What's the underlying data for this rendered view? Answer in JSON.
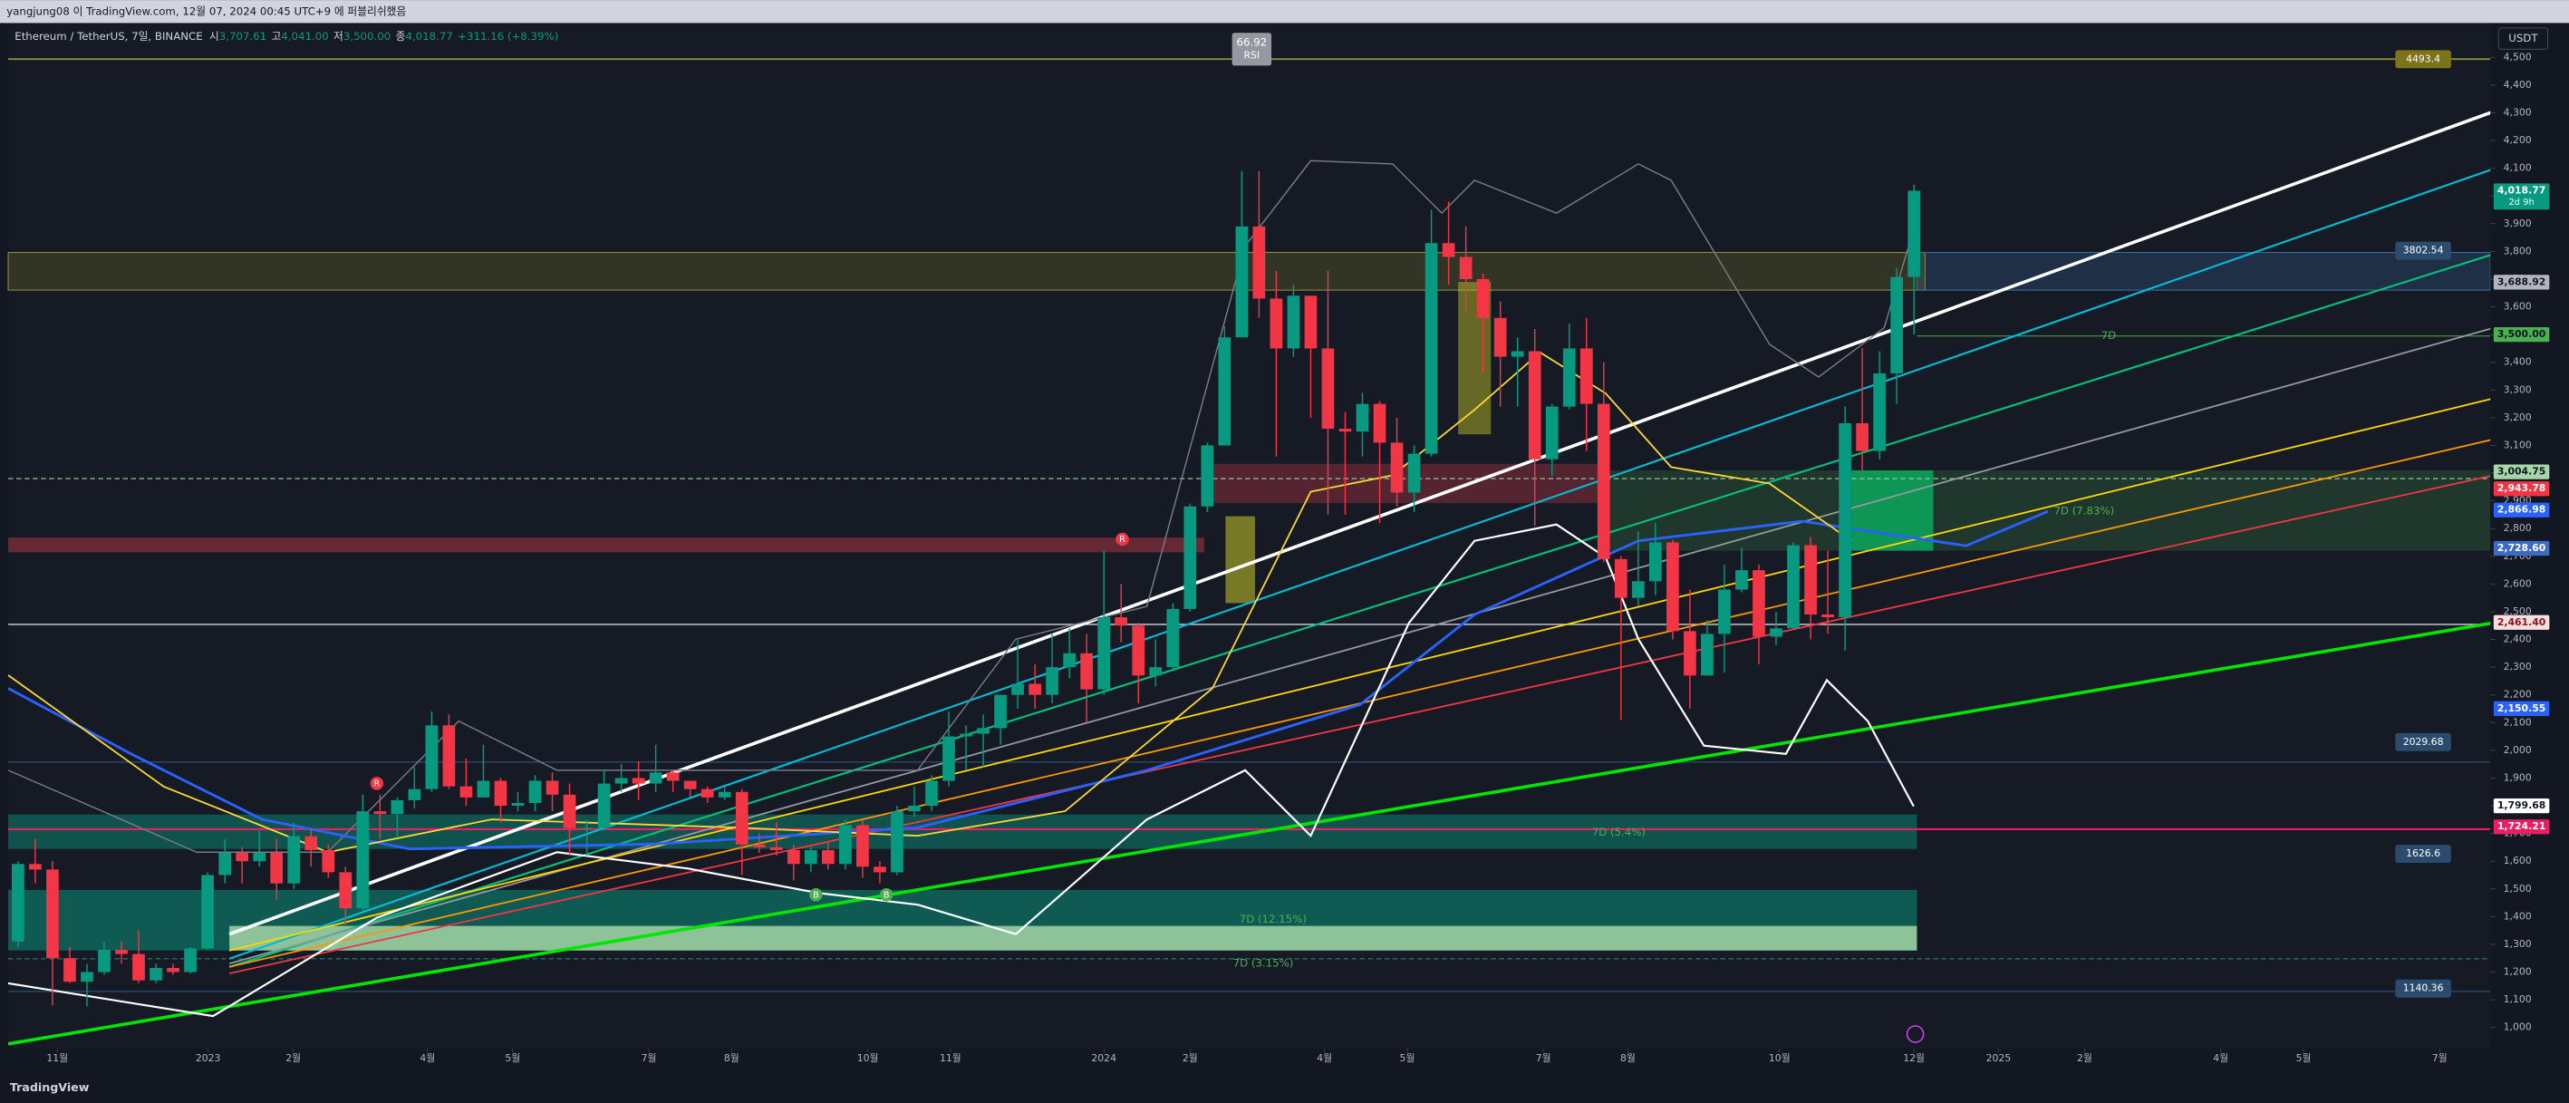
{
  "header": {
    "byline": "yangjung08 이 TradingView.com, 12월 07, 2024 00:45 UTC+9 에 퍼블리쉬했음",
    "footer": "TradingView"
  },
  "chart_data": {
    "type": "candlestick",
    "title": "Ethereum / TetherUS, 7일, BINANCE",
    "legend": {
      "o_label": "시",
      "open": "3,707.61",
      "h_label": "고",
      "high": "4,041.00",
      "l_label": "저",
      "low": "3,500.00",
      "c_label": "종",
      "close": "4,018.77",
      "change": "+311.16 (+8.39%)"
    },
    "currency": "USDT",
    "rsi": {
      "value": 66.92,
      "label": "RSI"
    },
    "up_color": "#089981",
    "down_color": "#f23645",
    "open": [
      1310,
      1590,
      1570,
      1250,
      1165,
      1200,
      1280,
      1265,
      1170,
      1215,
      1200,
      1285,
      1550,
      1630,
      1600,
      1630,
      1520,
      1690,
      1640,
      1560,
      1430,
      1780,
      1770,
      1820,
      1860,
      2090,
      1870,
      1830,
      1890,
      1800,
      1810,
      1890,
      1840,
      1720,
      1720,
      1880,
      1900,
      1880,
      1920,
      1890,
      1860,
      1830,
      1850,
      1660,
      1650,
      1640,
      1590,
      1640,
      1590,
      1730,
      1580,
      1560,
      1780,
      1800,
      1890,
      2050,
      2060,
      2080,
      2200,
      2240,
      2200,
      2300,
      2350,
      2220,
      2480,
      2450,
      2270,
      2300,
      2510,
      2880,
      3100,
      3490,
      3890,
      3630,
      3450,
      3640,
      3450,
      3160,
      3150,
      3250,
      3110,
      2930,
      3070,
      3830,
      3780,
      3700,
      3560,
      3420,
      3440,
      3050,
      3240,
      3450,
      3250,
      2690,
      2550,
      2610,
      2750,
      2430,
      2270,
      2420,
      2580,
      2650,
      2410,
      2440,
      2740,
      2490,
      2480,
      3180,
      3080,
      3360,
      3707.61
    ],
    "high": [
      1600,
      1680,
      1600,
      1290,
      1230,
      1310,
      1310,
      1350,
      1230,
      1230,
      1290,
      1560,
      1680,
      1650,
      1710,
      1680,
      1740,
      1720,
      1660,
      1580,
      1840,
      1840,
      1830,
      1940,
      2140,
      2130,
      1970,
      2020,
      1900,
      1850,
      1910,
      1920,
      1880,
      1750,
      1930,
      1950,
      1960,
      2020,
      1930,
      1890,
      1870,
      1870,
      1860,
      1700,
      1740,
      1660,
      1650,
      1670,
      1750,
      1750,
      1600,
      1800,
      1870,
      1910,
      2140,
      2090,
      2130,
      2200,
      2400,
      2310,
      2420,
      2440,
      2420,
      2720,
      2600,
      2460,
      2400,
      2530,
      2890,
      3110,
      3530,
      4090,
      4090,
      3730,
      3680,
      3640,
      3730,
      3220,
      3290,
      3260,
      3200,
      3100,
      3950,
      3980,
      3890,
      3720,
      3620,
      3490,
      3520,
      3250,
      3540,
      3560,
      3400,
      2700,
      2790,
      2820,
      2760,
      2580,
      2470,
      2670,
      2730,
      2670,
      2500,
      2750,
      2770,
      2720,
      3240,
      3450,
      3440,
      3740,
      4041
    ],
    "low": [
      1290,
      1520,
      1080,
      1160,
      1075,
      1190,
      1230,
      1160,
      1160,
      1190,
      1195,
      1280,
      1520,
      1520,
      1580,
      1460,
      1500,
      1580,
      1540,
      1370,
      1420,
      1680,
      1690,
      1790,
      1850,
      1860,
      1800,
      1830,
      1740,
      1780,
      1780,
      1780,
      1620,
      1620,
      1710,
      1850,
      1820,
      1850,
      1850,
      1830,
      1810,
      1820,
      1550,
      1630,
      1620,
      1530,
      1560,
      1570,
      1570,
      1540,
      1520,
      1550,
      1760,
      1780,
      1870,
      1930,
      1940,
      2020,
      2150,
      2150,
      2170,
      2260,
      2100,
      2200,
      2390,
      2170,
      2230,
      2290,
      2500,
      2860,
      3100,
      3490,
      3560,
      3060,
      3420,
      3200,
      2850,
      2850,
      3060,
      2820,
      2880,
      2860,
      3060,
      3680,
      3580,
      3360,
      3240,
      3240,
      2810,
      2990,
      3230,
      3080,
      2680,
      2110,
      2520,
      2560,
      2400,
      2150,
      2270,
      2280,
      2570,
      2310,
      2380,
      2440,
      2400,
      2420,
      2360,
      3010,
      3050,
      3250,
      3500
    ],
    "close": [
      1590,
      1570,
      1250,
      1165,
      1200,
      1280,
      1265,
      1170,
      1215,
      1200,
      1285,
      1550,
      1630,
      1600,
      1630,
      1520,
      1690,
      1640,
      1560,
      1430,
      1780,
      1770,
      1820,
      1860,
      2090,
      1870,
      1830,
      1890,
      1800,
      1810,
      1890,
      1840,
      1720,
      1720,
      1880,
      1900,
      1880,
      1920,
      1890,
      1860,
      1830,
      1850,
      1660,
      1650,
      1640,
      1590,
      1640,
      1590,
      1730,
      1580,
      1560,
      1780,
      1800,
      1890,
      2050,
      2060,
      2080,
      2200,
      2240,
      2200,
      2300,
      2350,
      2220,
      2480,
      2450,
      2270,
      2300,
      2510,
      2880,
      3100,
      3490,
      3890,
      3630,
      3450,
      3640,
      3450,
      3160,
      3150,
      3250,
      3110,
      2930,
      3070,
      3830,
      3780,
      3700,
      3560,
      3420,
      3440,
      3050,
      3240,
      3450,
      3250,
      2690,
      2550,
      2610,
      2750,
      2430,
      2270,
      2420,
      2580,
      2650,
      2410,
      2440,
      2740,
      2490,
      2480,
      3180,
      3080,
      3360,
      3707.61,
      4018.77
    ],
    "xlim": [
      -0.57,
      143.44
    ],
    "xticks": [
      {
        "value": 2.28,
        "label": "11월"
      },
      {
        "value": 11.03,
        "label": "2023"
      },
      {
        "value": 15.97,
        "label": "2월"
      },
      {
        "value": 23.76,
        "label": "4월"
      },
      {
        "value": 28.7,
        "label": "5월"
      },
      {
        "value": 36.6,
        "label": "7월"
      },
      {
        "value": 41.4,
        "label": "8월"
      },
      {
        "value": 49.3,
        "label": "10월"
      },
      {
        "value": 54.1,
        "label": "11월"
      },
      {
        "value": 63.0,
        "label": "2024"
      },
      {
        "value": 68.0,
        "label": "2월"
      },
      {
        "value": 75.8,
        "label": "4월"
      },
      {
        "value": 80.6,
        "label": "5월"
      },
      {
        "value": 88.5,
        "label": "7월"
      },
      {
        "value": 93.4,
        "label": "8월"
      },
      {
        "value": 102.2,
        "label": "10월"
      },
      {
        "value": 110,
        "label": "12월"
      },
      {
        "value": 114.9,
        "label": "2025"
      },
      {
        "value": 119.9,
        "label": "2월"
      },
      {
        "value": 127.8,
        "label": "4월"
      },
      {
        "value": 132.6,
        "label": "5월"
      },
      {
        "value": 140.5,
        "label": "7월"
      }
    ],
    "ylim": [
      852,
      4624
    ],
    "yticks": [
      {
        "value": 1000,
        "label": "1,000"
      },
      {
        "value": 1100,
        "label": "1,100"
      },
      {
        "value": 1200,
        "label": "1,200"
      },
      {
        "value": 1300,
        "label": "1,300"
      },
      {
        "value": 1400,
        "label": "1,400"
      },
      {
        "value": 1500,
        "label": "1,500"
      },
      {
        "value": 1600,
        "label": "1,600"
      },
      {
        "value": 1700,
        "label": "1,700"
      },
      {
        "value": 1800,
        "label": "1,800"
      },
      {
        "value": 1900,
        "label": "1,900"
      },
      {
        "value": 2000,
        "label": "2,000"
      },
      {
        "value": 2100,
        "label": "2,100"
      },
      {
        "value": 2200,
        "label": "2,200"
      },
      {
        "value": 2300,
        "label": "2,300"
      },
      {
        "value": 2400,
        "label": "2,400"
      },
      {
        "value": 2500,
        "label": "2,500"
      },
      {
        "value": 2600,
        "label": "2,600"
      },
      {
        "value": 2700,
        "label": "2,700"
      },
      {
        "value": 2800,
        "label": "2,800"
      },
      {
        "value": 2900,
        "label": "2,900"
      },
      {
        "value": 3000,
        "label": "3,000"
      },
      {
        "value": 3100,
        "label": "3,100"
      },
      {
        "value": 3200,
        "label": "3,200"
      },
      {
        "value": 3300,
        "label": "3,300"
      },
      {
        "value": 3400,
        "label": "3,400"
      },
      {
        "value": 3500,
        "label": "3,500"
      },
      {
        "value": 3600,
        "label": "3,600"
      },
      {
        "value": 3700,
        "label": "3,700"
      },
      {
        "value": 3800,
        "label": "3,800"
      },
      {
        "value": 3900,
        "label": "3,900"
      },
      {
        "value": 4000,
        "label": "4,000"
      },
      {
        "value": 4100,
        "label": "4,100"
      },
      {
        "value": 4200,
        "label": "4,200"
      },
      {
        "value": 4300,
        "label": "4,300"
      },
      {
        "value": 4400,
        "label": "4,400"
      },
      {
        "value": 4500,
        "label": "4,500"
      }
    ],
    "grid": false,
    "axis_badges": [
      {
        "value": 4018.77,
        "label": "4,018.77",
        "bg": "#089981",
        "fg": "#ffffff"
      },
      {
        "value": 3688.92,
        "label": "3,688.92",
        "bg": "#b2b5be",
        "fg": "#131722"
      },
      {
        "value": 3500,
        "label": "3,500.00",
        "bg": "#4caf50",
        "fg": "#131722"
      },
      {
        "value": 3004.75,
        "label": "3,004.75",
        "bg": "#a5d6a7",
        "fg": "#131722"
      },
      {
        "value": 2943.78,
        "label": "2,943.78",
        "bg": "#f23645",
        "fg": "#ffffff"
      },
      {
        "value": 2866.98,
        "label": "2,866.98",
        "bg": "#2962ff",
        "fg": "#ffffff"
      },
      {
        "value": 2728.6,
        "label": "2,728.60",
        "bg": "#3d6bc4",
        "fg": "#ffffff"
      },
      {
        "value": 2461.4,
        "label": "2,461.40",
        "bg": "#f8dede",
        "fg": "#801922"
      },
      {
        "value": 2150.55,
        "label": "2,150.55",
        "bg": "#2962ff",
        "fg": "#ffffff"
      },
      {
        "value": 1799.68,
        "label": "1,799.68",
        "bg": "#ffffff",
        "fg": "#131722"
      },
      {
        "value": 1724.21,
        "label": "1,724.21",
        "bg": "#e91e63",
        "fg": "#ffffff"
      }
    ],
    "countdown": "2d 9h",
    "level_badges": [
      {
        "value": 4493.4,
        "bg": "#7d7318"
      },
      {
        "value": 3802.54,
        "bg": "#2a4b6e"
      },
      {
        "value": 2029.68,
        "bg": "#2a4b6e"
      },
      {
        "value": 1626.6,
        "bg": "#2a4b6e"
      },
      {
        "value": 1140.36,
        "bg": "#2a4b6e"
      }
    ],
    "annotations": [
      "7D",
      "7D (7.83%)",
      "7D (5.4%)",
      "7D (12.15%)",
      "7D (3.15%)"
    ],
    "markers": [
      "R",
      "R",
      "B",
      "B"
    ]
  }
}
